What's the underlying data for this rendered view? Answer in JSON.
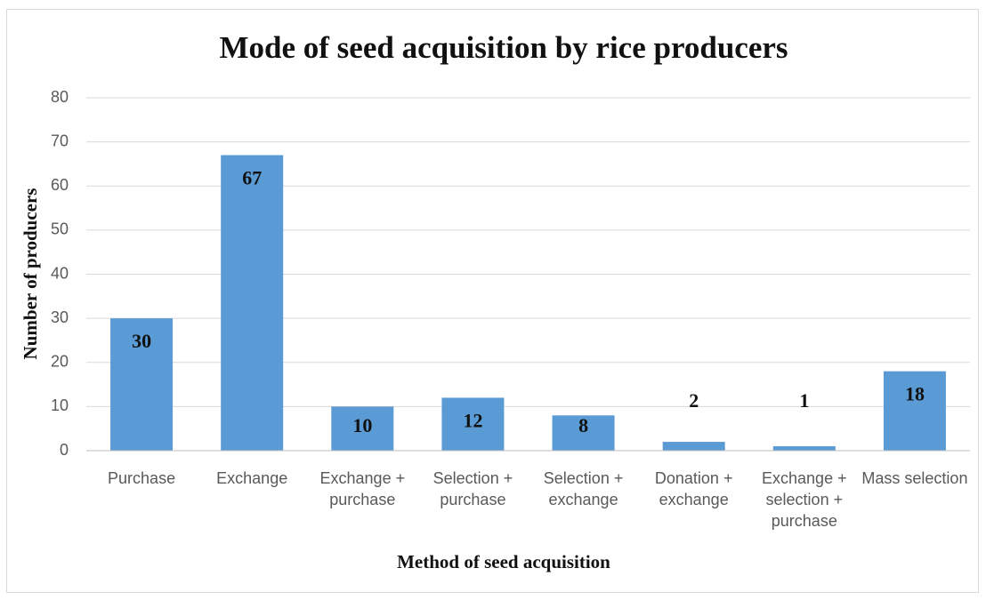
{
  "chart_data": {
    "type": "bar",
    "title": "Mode of seed acquisition by rice producers",
    "x_label": "Method of seed acquisition",
    "y_label": "Number of producers",
    "categories": [
      "Purchase",
      "Exchange",
      "Exchange + purchase",
      "Selection + purchase",
      "Selection + exchange",
      "Donation + exchange",
      "Exchange + selection + purchase",
      "Mass selection"
    ],
    "values": [
      30,
      67,
      10,
      12,
      8,
      2,
      1,
      18
    ],
    "color": "#5b9bd5",
    "ylim": [
      0,
      80
    ],
    "yticks": [
      0,
      10,
      20,
      30,
      40,
      50,
      60,
      70,
      80
    ],
    "grid": true
  }
}
